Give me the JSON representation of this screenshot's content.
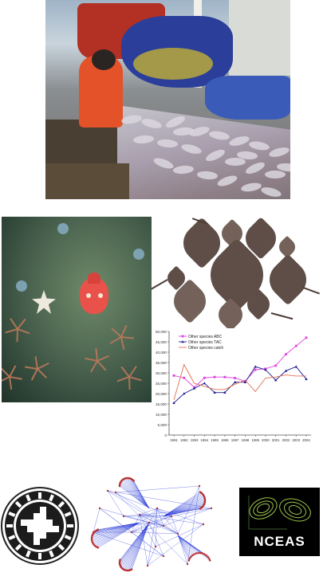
{
  "images": {
    "deck_photo": {
      "subject": "fishing-deck-catch"
    },
    "underwater_photo": {
      "subject": "rockfish-seafloor"
    },
    "skates_photo": {
      "subject": "skates-on-white"
    },
    "circle_logo": {
      "subject": "circular-emblem"
    },
    "network": {
      "subject": "network-graph"
    }
  },
  "nceas_logo": {
    "wordmark": "NCEAS"
  },
  "chart_data": {
    "type": "line",
    "x": [
      "1991",
      "1992",
      "1993",
      "1994",
      "1995",
      "1996",
      "1997",
      "1998",
      "1999",
      "2000",
      "2001",
      "2002",
      "2003",
      "2004"
    ],
    "ylim": [
      0,
      50000
    ],
    "yticks": [
      "0",
      "5,000",
      "10,000",
      "15,000",
      "20,000",
      "25,000",
      "30,000",
      "35,000",
      "40,000",
      "45,000",
      "50,000"
    ],
    "grid": false,
    "legend_position": "top-left",
    "series": [
      {
        "name": "Other species ABC",
        "color": "#e040e0",
        "marker": "square",
        "values": [
          28700,
          27600,
          23000,
          27600,
          28000,
          28000,
          27500,
          26000,
          31500,
          32000,
          33500,
          39000,
          43000,
          47000
        ]
      },
      {
        "name": "Other species TAC",
        "color": "#1a1a8c",
        "marker": "triangle",
        "values": [
          15500,
          20000,
          22500,
          25000,
          20500,
          20500,
          25500,
          25500,
          33000,
          31500,
          26500,
          31000,
          33000,
          27000
        ]
      },
      {
        "name": "Other species catch",
        "color": "#e07050",
        "marker": "none",
        "values": [
          17000,
          34000,
          25000,
          23500,
          22000,
          22000,
          24500,
          26500,
          21000,
          27500,
          28000,
          29000,
          28500,
          28500
        ]
      }
    ]
  },
  "colors": {
    "network_edges": "#2d3fd8",
    "network_nodes": "#b83030",
    "nceas_loops": "#9bc24a"
  }
}
